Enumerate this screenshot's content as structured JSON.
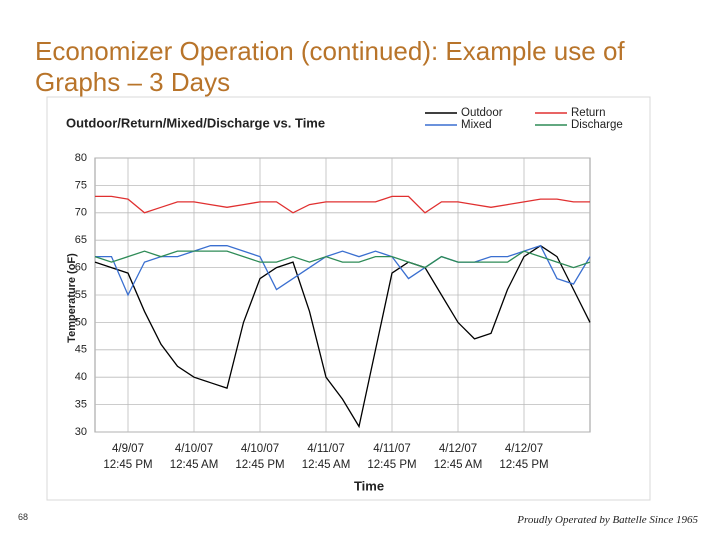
{
  "slide": {
    "title": "Economizer Operation (continued): Example use of Graphs – 3 Days",
    "number": "68",
    "footer": "Proudly Operated by Battelle Since 1965"
  },
  "chart_data": {
    "type": "line",
    "title": "Outdoor/Return/Mixed/Discharge vs. Time",
    "x_label": "Time",
    "y_label": "Temperature (oF)",
    "categories": [
      null,
      null,
      "4/9/07\n12:45 PM",
      null,
      null,
      null,
      "4/10/07\n12:45 AM",
      null,
      null,
      null,
      "4/10/07\n12:45 PM",
      null,
      null,
      null,
      "4/11/07\n12:45 AM",
      null,
      null,
      null,
      "4/11/07\n12:45 PM",
      null,
      null,
      null,
      "4/12/07\n12:45 AM",
      null,
      null,
      null,
      "4/12/07\n12:45 PM",
      null,
      null,
      null,
      null
    ],
    "series": [
      {
        "name": "Outdoor",
        "color": "#000000",
        "values": [
          61,
          60,
          59,
          52,
          46,
          42,
          40,
          39,
          38,
          50,
          58,
          60,
          61,
          52,
          40,
          36,
          31,
          45,
          59,
          61,
          60,
          55,
          50,
          47,
          48,
          56,
          62,
          64,
          62,
          56,
          50
        ]
      },
      {
        "name": "Return",
        "color": "#e03030",
        "values": [
          73,
          73,
          72.5,
          70,
          71,
          72,
          72,
          71.5,
          71,
          71.5,
          72,
          72,
          70,
          71.5,
          72,
          72,
          72,
          72,
          73,
          73,
          70,
          72,
          72,
          71.5,
          71,
          71.5,
          72,
          72.5,
          72.5,
          72,
          72
        ]
      },
      {
        "name": "Mixed",
        "color": "#3a6fd0",
        "values": [
          62,
          62,
          55,
          61,
          62,
          62,
          63,
          64,
          64,
          63,
          62,
          56,
          58,
          60,
          62,
          63,
          62,
          63,
          62,
          58,
          60,
          62,
          61,
          61,
          62,
          62,
          63,
          64,
          58,
          57,
          62
        ]
      },
      {
        "name": "Discharge",
        "color": "#2e8b57",
        "values": [
          62,
          61,
          62,
          63,
          62,
          63,
          63,
          63,
          63,
          62,
          61,
          61,
          62,
          61,
          62,
          61,
          61,
          62,
          62,
          61,
          60,
          62,
          61,
          61,
          61,
          61,
          63,
          62,
          61,
          60,
          61
        ]
      }
    ],
    "ylim": [
      30,
      80
    ],
    "yticks": [
      30,
      35,
      40,
      45,
      50,
      55,
      60,
      65,
      70,
      75,
      80
    ],
    "grid": true,
    "legend": "top-right"
  }
}
